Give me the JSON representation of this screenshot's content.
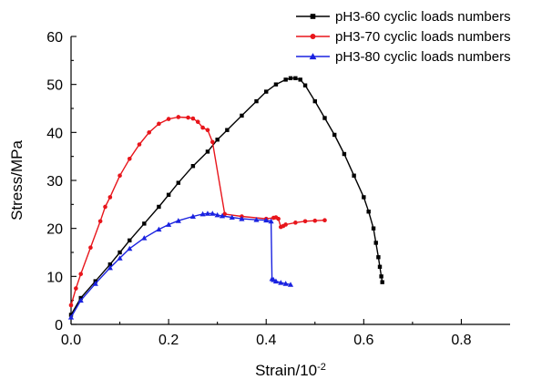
{
  "chart_data": {
    "type": "line",
    "title": "",
    "xlabel": "Strain/10",
    "xlabel_exponent": "-2",
    "ylabel": "Stress/MPa",
    "xlim": [
      0,
      0.9
    ],
    "ylim": [
      0,
      60
    ],
    "xticks": [
      0.0,
      0.2,
      0.4,
      0.6,
      0.8
    ],
    "xtick_labels": [
      "0.0",
      "0.2",
      "0.4",
      "0.6",
      "0.8"
    ],
    "yticks": [
      0,
      10,
      20,
      30,
      40,
      50,
      60
    ],
    "ytick_labels": [
      "0",
      "10",
      "20",
      "30",
      "40",
      "50",
      "60"
    ],
    "grid": false,
    "legend_position": "top-right",
    "series": [
      {
        "name": "pH3-60 cyclic loads numbers",
        "color": "#000000",
        "marker": "square",
        "x": [
          0.0,
          0.02,
          0.05,
          0.08,
          0.1,
          0.12,
          0.15,
          0.18,
          0.2,
          0.22,
          0.25,
          0.28,
          0.3,
          0.32,
          0.35,
          0.38,
          0.4,
          0.42,
          0.44,
          0.45,
          0.46,
          0.47,
          0.48,
          0.5,
          0.52,
          0.54,
          0.56,
          0.58,
          0.6,
          0.61,
          0.62,
          0.625,
          0.63,
          0.633,
          0.636,
          0.638
        ],
        "y": [
          2.0,
          5.5,
          9.0,
          12.5,
          15.0,
          17.5,
          21.0,
          24.5,
          27.0,
          29.5,
          33.0,
          36.0,
          38.5,
          40.5,
          43.5,
          46.5,
          48.5,
          50.0,
          51.0,
          51.3,
          51.3,
          51.0,
          49.8,
          46.5,
          43.0,
          39.5,
          35.5,
          31.0,
          26.5,
          23.5,
          20.0,
          17.0,
          14.0,
          12.0,
          10.0,
          8.8
        ]
      },
      {
        "name": "pH3-70 cyclic loads numbers",
        "color": "#e8151b",
        "marker": "circle",
        "x": [
          0.0,
          0.01,
          0.02,
          0.04,
          0.06,
          0.07,
          0.08,
          0.1,
          0.12,
          0.14,
          0.16,
          0.18,
          0.2,
          0.22,
          0.24,
          0.25,
          0.26,
          0.27,
          0.28,
          0.29,
          0.315,
          0.35,
          0.4,
          0.415,
          0.42,
          0.425,
          0.43,
          0.435,
          0.44,
          0.46,
          0.48,
          0.5,
          0.52
        ],
        "y": [
          4.0,
          7.5,
          10.5,
          16.0,
          21.5,
          24.5,
          26.5,
          31.0,
          34.5,
          37.5,
          40.0,
          41.8,
          42.8,
          43.2,
          43.1,
          42.9,
          42.2,
          41.0,
          40.5,
          38.0,
          23.0,
          22.5,
          22.0,
          22.2,
          22.3,
          22.0,
          20.3,
          20.5,
          20.8,
          21.2,
          21.5,
          21.6,
          21.7
        ]
      },
      {
        "name": "pH3-80 cyclic loads numbers",
        "color": "#1a22e0",
        "marker": "triangle",
        "x": [
          0.0,
          0.02,
          0.05,
          0.08,
          0.1,
          0.12,
          0.15,
          0.18,
          0.2,
          0.22,
          0.25,
          0.27,
          0.28,
          0.29,
          0.3,
          0.31,
          0.33,
          0.35,
          0.38,
          0.4,
          0.41,
          0.412,
          0.415,
          0.42,
          0.43,
          0.44,
          0.45
        ],
        "y": [
          1.5,
          5.0,
          8.5,
          11.8,
          13.8,
          15.8,
          18.0,
          19.8,
          20.8,
          21.6,
          22.5,
          23.0,
          23.1,
          23.1,
          22.8,
          22.6,
          22.3,
          22.0,
          21.8,
          21.7,
          21.5,
          9.5,
          9.3,
          9.0,
          8.7,
          8.5,
          8.3
        ]
      }
    ]
  }
}
